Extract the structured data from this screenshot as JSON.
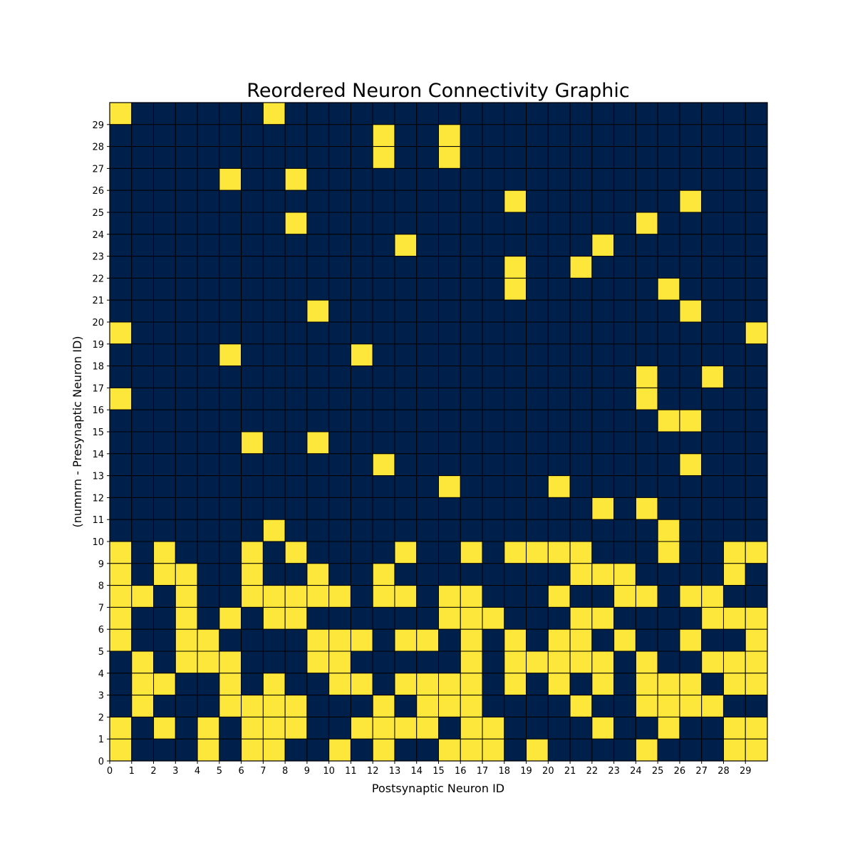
{
  "chart_data": {
    "type": "heatmap",
    "title": "Reordered Neuron Connectivity Graphic",
    "xlabel": "Postsynaptic Neuron ID",
    "ylabel": "(numnrn - Presynaptic Neuron ID)",
    "xticks": [
      0,
      1,
      2,
      3,
      4,
      5,
      6,
      7,
      8,
      9,
      10,
      11,
      12,
      13,
      14,
      15,
      16,
      17,
      18,
      19,
      20,
      21,
      22,
      23,
      24,
      25,
      26,
      27,
      28,
      29
    ],
    "yticks": [
      0,
      1,
      2,
      3,
      4,
      5,
      6,
      7,
      8,
      9,
      10,
      11,
      12,
      13,
      14,
      15,
      16,
      17,
      18,
      19,
      20,
      21,
      22,
      23,
      24,
      25,
      26,
      27,
      28,
      29
    ],
    "xlim": [
      0,
      30
    ],
    "ylim": [
      0,
      30
    ],
    "grid": true,
    "colors": {
      "connected": "#fde73a",
      "unconnected": "#00204c",
      "grid": "#000000"
    },
    "rows_top_to_bottom": [
      "100000010000000000000000000000",
      "000000000000100100000000000000",
      "000000000000100100000000000000",
      "000001001000000000000000000000",
      "000000000000000000100000001000",
      "000000001000000000000000100000",
      "000000000000010000000010000000",
      "000000000000000000100100000000",
      "000000000000000000100000010000",
      "000000000100000000000000001000",
      "100000000000000000000000000001",
      "000001000001000000000000000000",
      "000000000000000000000000100100",
      "100000000000000000000000100000",
      "000000000000000000000000011000",
      "000000100100000000000000000000",
      "000000000000100000000000001000",
      "000000000000000100001000000000",
      "000000000000000000000010100000",
      "000000010000000000000000010000",
      "101000101000010010111100010011",
      "101100100100100000000111000010",
      "110100111110110110001001101100",
      "100101011000000111000110000111",
      "100110000111011010101101001001",
      "010111000110000010111110100111",
      "011001010011011110101010111011",
      "010001111000101110000100111100",
      "101010111001111011000010010011",
      "100010110010100111010000100011"
    ]
  }
}
